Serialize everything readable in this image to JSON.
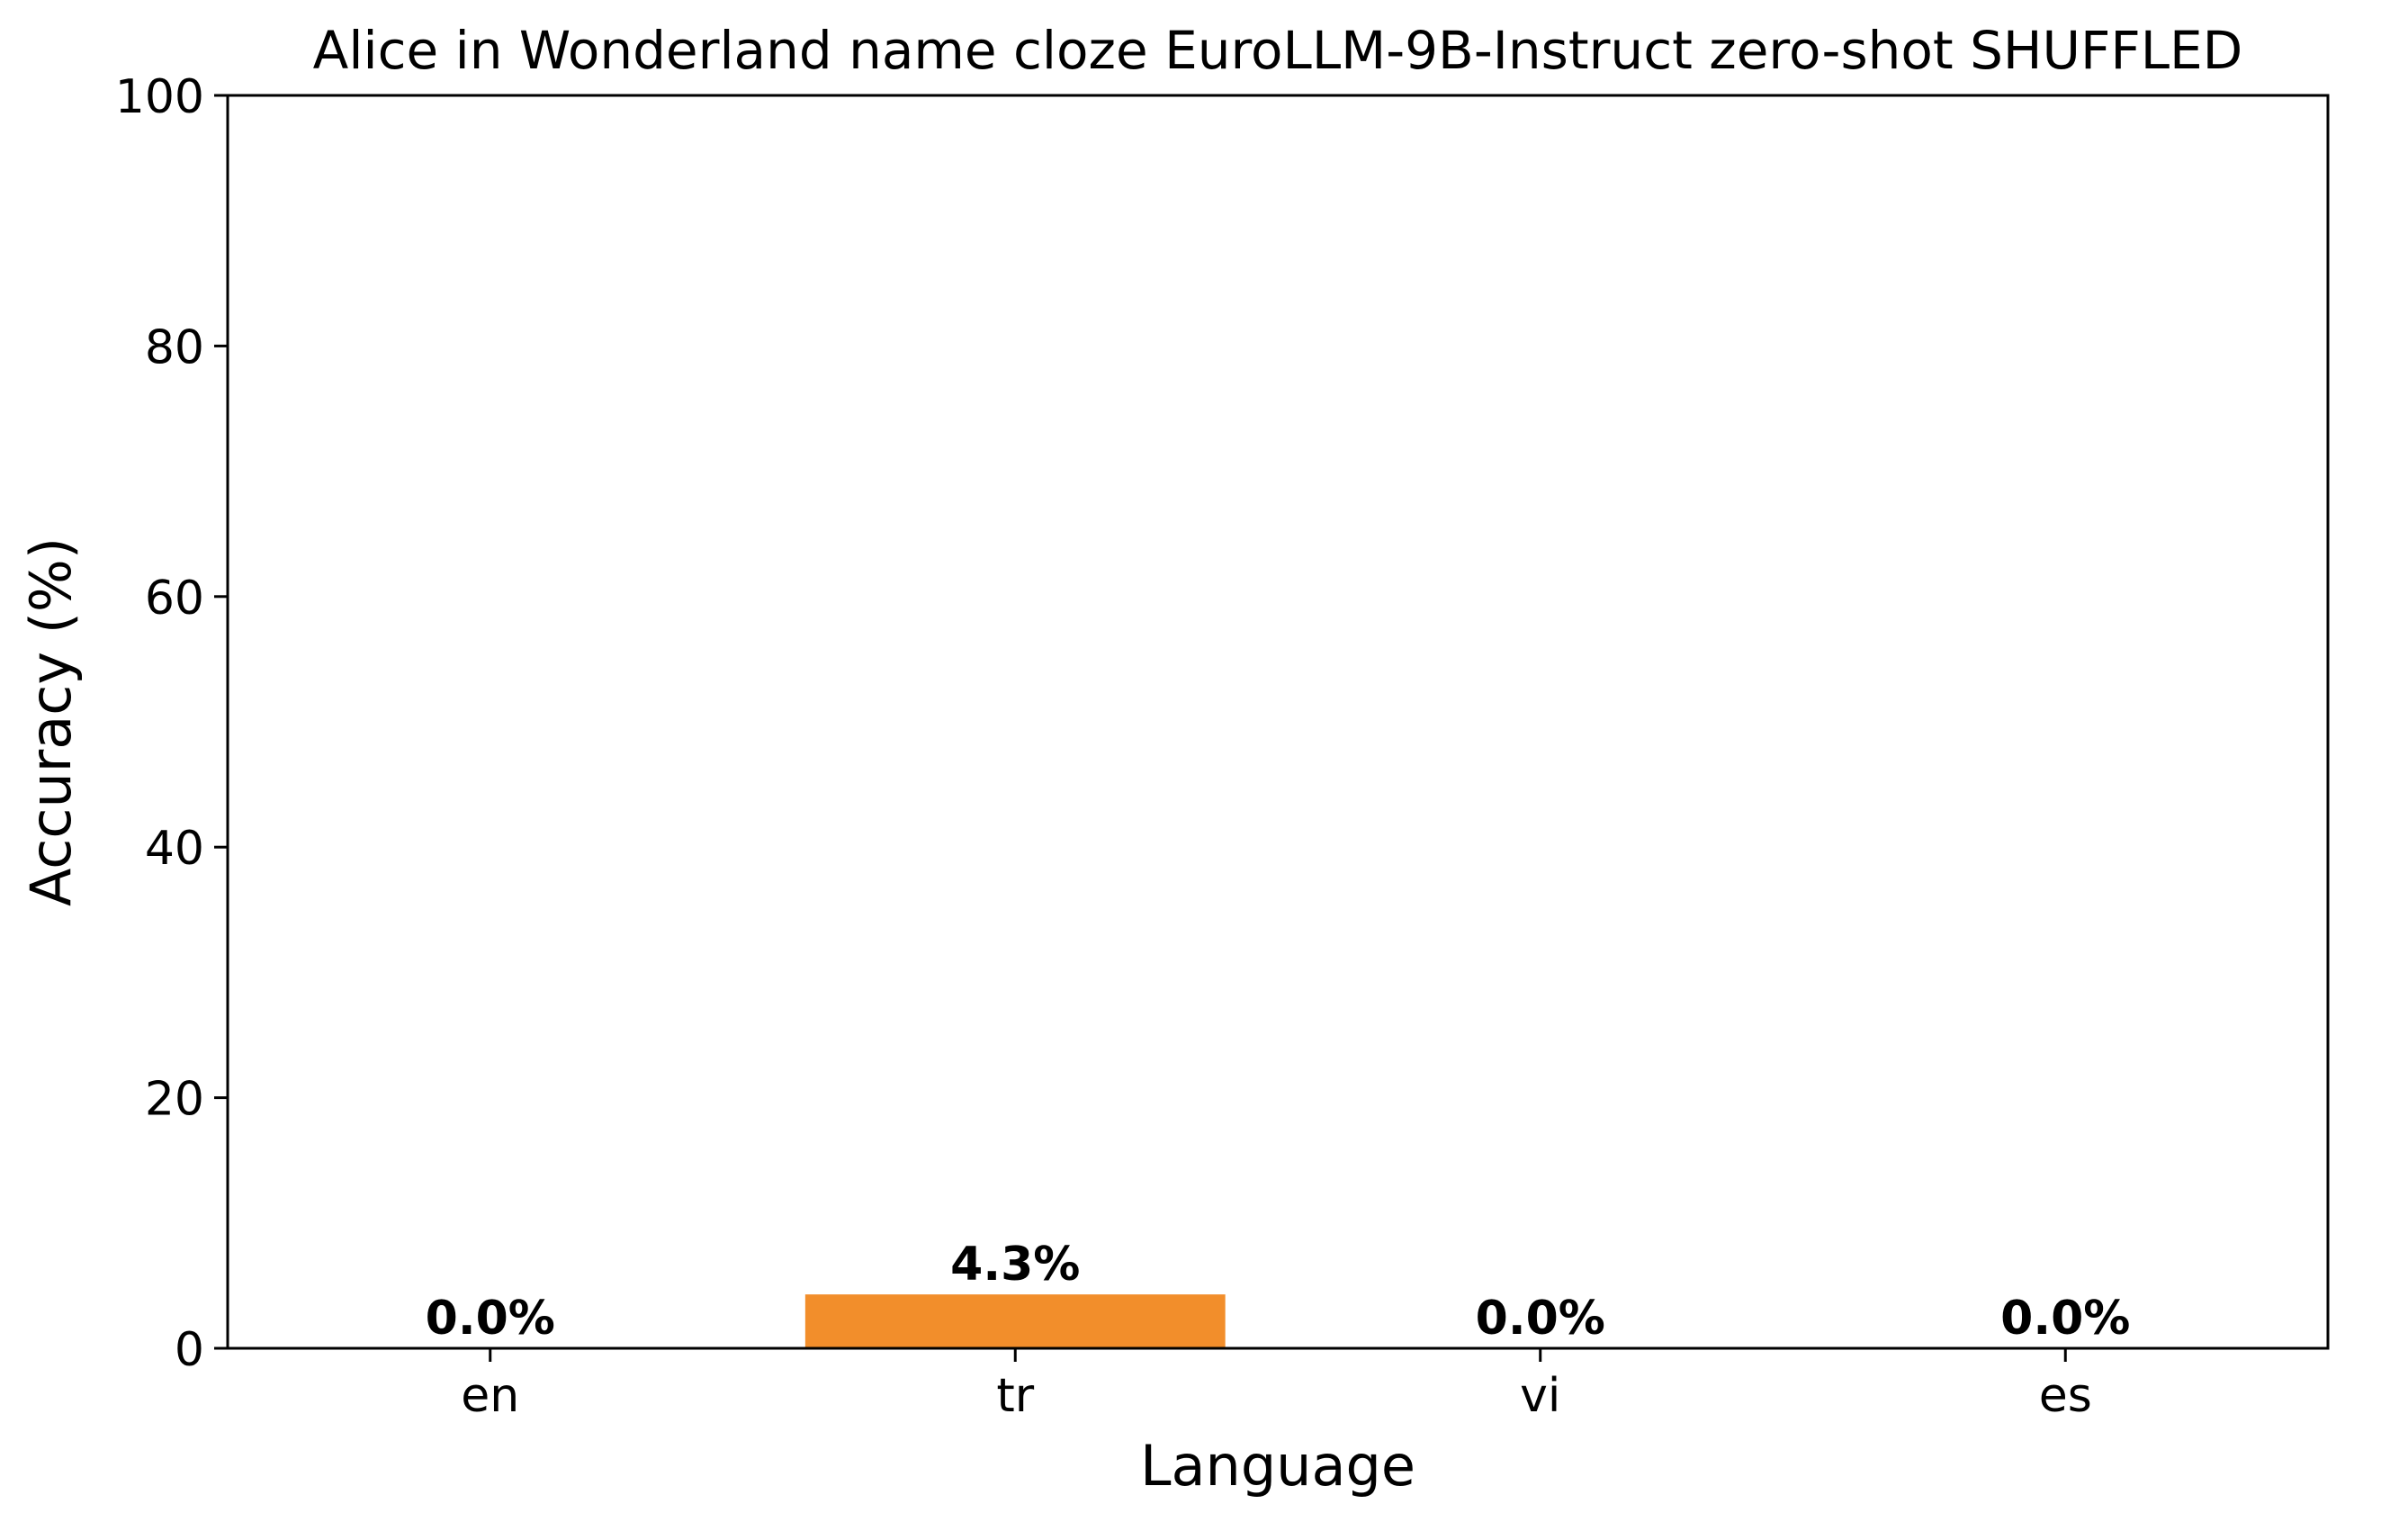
{
  "chart_data": {
    "type": "bar",
    "title": "Alice in Wonderland name cloze EuroLLM-9B-Instruct zero-shot SHUFFLED",
    "xlabel": "Language",
    "ylabel": "Accuracy (%)",
    "categories": [
      "en",
      "tr",
      "vi",
      "es"
    ],
    "values": [
      0.0,
      4.3,
      0.0,
      0.0
    ],
    "value_labels": [
      "0.0%",
      "4.3%",
      "0.0%",
      "0.0%"
    ],
    "ylim": [
      0,
      100
    ],
    "yticks": [
      0,
      20,
      40,
      60,
      80,
      100
    ],
    "ytick_labels": [
      "0",
      "20",
      "40",
      "60",
      "80",
      "100"
    ],
    "grid": false,
    "legend": "none",
    "bar_colors": [
      "#f28e2b",
      "#f28e2b",
      "#f28e2b",
      "#f28e2b"
    ]
  }
}
